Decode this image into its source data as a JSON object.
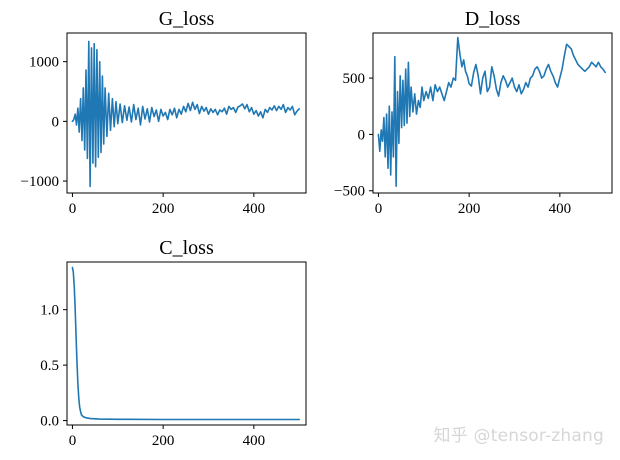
{
  "watermark": "知乎 @tensor-zhang",
  "line_color": "#1f77b4",
  "chart_data": [
    {
      "type": "line",
      "title": "G_loss",
      "xlim": [
        -12,
        515
      ],
      "ylim": [
        -1200,
        1480
      ],
      "xticks": [
        0,
        200,
        400
      ],
      "xtick_labels": [
        "0",
        "200",
        "400"
      ],
      "yticks": [
        -1000,
        0,
        1000
      ],
      "ytick_labels": [
        "−1000",
        "0",
        "1000"
      ],
      "series": [
        {
          "values": [
            [
              0,
              0
            ],
            [
              3,
              30
            ],
            [
              6,
              120
            ],
            [
              9,
              -60
            ],
            [
              12,
              220
            ],
            [
              15,
              -180
            ],
            [
              18,
              380
            ],
            [
              21,
              -320
            ],
            [
              24,
              560
            ],
            [
              27,
              -480
            ],
            [
              30,
              860
            ],
            [
              33,
              -620
            ],
            [
              36,
              1340
            ],
            [
              39,
              -1090
            ],
            [
              42,
              1230
            ],
            [
              45,
              -700
            ],
            [
              48,
              1300
            ],
            [
              51,
              -760
            ],
            [
              54,
              1200
            ],
            [
              57,
              -600
            ],
            [
              60,
              1000
            ],
            [
              63,
              -520
            ],
            [
              66,
              760
            ],
            [
              69,
              -380
            ],
            [
              72,
              560
            ],
            [
              76,
              -250
            ],
            [
              80,
              470
            ],
            [
              84,
              -150
            ],
            [
              88,
              380
            ],
            [
              92,
              -90
            ],
            [
              96,
              330
            ],
            [
              100,
              -40
            ],
            [
              105,
              290
            ],
            [
              110,
              -20
            ],
            [
              115,
              260
            ],
            [
              120,
              20
            ],
            [
              125,
              240
            ],
            [
              130,
              -10
            ],
            [
              135,
              280
            ],
            [
              140,
              30
            ],
            [
              145,
              220
            ],
            [
              150,
              -60
            ],
            [
              155,
              250
            ],
            [
              160,
              40
            ],
            [
              165,
              210
            ],
            [
              170,
              -10
            ],
            [
              175,
              230
            ],
            [
              180,
              80
            ],
            [
              185,
              190
            ],
            [
              190,
              0
            ],
            [
              195,
              200
            ],
            [
              200,
              90
            ],
            [
              205,
              150
            ],
            [
              210,
              30
            ],
            [
              215,
              200
            ],
            [
              220,
              110
            ],
            [
              225,
              220
            ],
            [
              230,
              60
            ],
            [
              235,
              200
            ],
            [
              240,
              120
            ],
            [
              245,
              250
            ],
            [
              250,
              160
            ],
            [
              255,
              300
            ],
            [
              260,
              180
            ],
            [
              265,
              320
            ],
            [
              270,
              200
            ],
            [
              275,
              280
            ],
            [
              280,
              130
            ],
            [
              285,
              250
            ],
            [
              290,
              170
            ],
            [
              295,
              230
            ],
            [
              300,
              120
            ],
            [
              305,
              210
            ],
            [
              310,
              150
            ],
            [
              315,
              200
            ],
            [
              320,
              110
            ],
            [
              325,
              190
            ],
            [
              330,
              160
            ],
            [
              335,
              220
            ],
            [
              340,
              120
            ],
            [
              345,
              250
            ],
            [
              350,
              200
            ],
            [
              355,
              230
            ],
            [
              360,
              150
            ],
            [
              365,
              240
            ],
            [
              370,
              260
            ],
            [
              375,
              290
            ],
            [
              380,
              210
            ],
            [
              385,
              280
            ],
            [
              390,
              160
            ],
            [
              395,
              230
            ],
            [
              400,
              120
            ],
            [
              405,
              180
            ],
            [
              410,
              90
            ],
            [
              415,
              160
            ],
            [
              420,
              60
            ],
            [
              425,
              200
            ],
            [
              430,
              150
            ],
            [
              435,
              230
            ],
            [
              440,
              190
            ],
            [
              445,
              260
            ],
            [
              450,
              180
            ],
            [
              455,
              250
            ],
            [
              460,
              200
            ],
            [
              465,
              280
            ],
            [
              470,
              150
            ],
            [
              475,
              230
            ],
            [
              480,
              190
            ],
            [
              485,
              250
            ],
            [
              490,
              110
            ],
            [
              495,
              170
            ],
            [
              500,
              210
            ]
          ]
        }
      ]
    },
    {
      "type": "line",
      "title": "D_loss",
      "xlim": [
        -12,
        515
      ],
      "ylim": [
        -520,
        900
      ],
      "xticks": [
        0,
        200,
        400
      ],
      "xtick_labels": [
        "0",
        "200",
        "400"
      ],
      "yticks": [
        -500,
        0,
        500
      ],
      "ytick_labels": [
        "−500",
        "0",
        "500"
      ],
      "series": [
        {
          "values": [
            [
              0,
              0
            ],
            [
              3,
              -150
            ],
            [
              6,
              40
            ],
            [
              9,
              -60
            ],
            [
              12,
              150
            ],
            [
              15,
              -200
            ],
            [
              18,
              180
            ],
            [
              21,
              -300
            ],
            [
              24,
              250
            ],
            [
              27,
              -360
            ],
            [
              30,
              200
            ],
            [
              33,
              -200
            ],
            [
              36,
              690
            ],
            [
              39,
              -460
            ],
            [
              42,
              380
            ],
            [
              45,
              -80
            ],
            [
              48,
              520
            ],
            [
              51,
              60
            ],
            [
              54,
              480
            ],
            [
              57,
              80
            ],
            [
              60,
              580
            ],
            [
              63,
              100
            ],
            [
              66,
              640
            ],
            [
              69,
              160
            ],
            [
              72,
              420
            ],
            [
              76,
              200
            ],
            [
              80,
              360
            ],
            [
              84,
              180
            ],
            [
              88,
              300
            ],
            [
              92,
              240
            ],
            [
              96,
              420
            ],
            [
              100,
              300
            ],
            [
              105,
              380
            ],
            [
              110,
              320
            ],
            [
              115,
              420
            ],
            [
              120,
              300
            ],
            [
              125,
              440
            ],
            [
              130,
              380
            ],
            [
              135,
              420
            ],
            [
              140,
              360
            ],
            [
              145,
              300
            ],
            [
              150,
              380
            ],
            [
              155,
              460
            ],
            [
              160,
              420
            ],
            [
              165,
              500
            ],
            [
              170,
              480
            ],
            [
              175,
              860
            ],
            [
              180,
              700
            ],
            [
              184,
              600
            ],
            [
              188,
              660
            ],
            [
              192,
              560
            ],
            [
              196,
              520
            ],
            [
              200,
              450
            ],
            [
              205,
              430
            ],
            [
              210,
              550
            ],
            [
              215,
              620
            ],
            [
              220,
              520
            ],
            [
              225,
              360
            ],
            [
              230,
              500
            ],
            [
              235,
              560
            ],
            [
              240,
              380
            ],
            [
              245,
              420
            ],
            [
              250,
              600
            ],
            [
              255,
              520
            ],
            [
              260,
              400
            ],
            [
              265,
              340
            ],
            [
              270,
              460
            ],
            [
              275,
              520
            ],
            [
              280,
              480
            ],
            [
              285,
              420
            ],
            [
              290,
              460
            ],
            [
              295,
              500
            ],
            [
              300,
              420
            ],
            [
              305,
              380
            ],
            [
              310,
              440
            ],
            [
              315,
              360
            ],
            [
              320,
              400
            ],
            [
              325,
              460
            ],
            [
              330,
              420
            ],
            [
              335,
              500
            ],
            [
              340,
              520
            ],
            [
              345,
              580
            ],
            [
              350,
              600
            ],
            [
              355,
              560
            ],
            [
              360,
              500
            ],
            [
              365,
              520
            ],
            [
              370,
              580
            ],
            [
              375,
              620
            ],
            [
              380,
              560
            ],
            [
              385,
              520
            ],
            [
              390,
              460
            ],
            [
              395,
              420
            ],
            [
              400,
              500
            ],
            [
              405,
              580
            ],
            [
              410,
              700
            ],
            [
              415,
              800
            ],
            [
              420,
              780
            ],
            [
              425,
              760
            ],
            [
              430,
              700
            ],
            [
              435,
              660
            ],
            [
              440,
              620
            ],
            [
              445,
              600
            ],
            [
              450,
              580
            ],
            [
              455,
              560
            ],
            [
              460,
              580
            ],
            [
              465,
              600
            ],
            [
              470,
              640
            ],
            [
              475,
              620
            ],
            [
              480,
              600
            ],
            [
              485,
              640
            ],
            [
              490,
              600
            ],
            [
              495,
              580
            ],
            [
              500,
              550
            ]
          ]
        }
      ]
    },
    {
      "type": "line",
      "title": "C_loss",
      "xlim": [
        -12,
        515
      ],
      "ylim": [
        -0.04,
        1.43
      ],
      "xticks": [
        0,
        200,
        400
      ],
      "xtick_labels": [
        "0",
        "200",
        "400"
      ],
      "yticks": [
        0,
        0.5,
        1
      ],
      "ytick_labels": [
        "0.0",
        "0.5",
        "1.0"
      ],
      "series": [
        {
          "values": [
            [
              0,
              1.38
            ],
            [
              2,
              1.34
            ],
            [
              4,
              1.2
            ],
            [
              6,
              1.0
            ],
            [
              8,
              0.75
            ],
            [
              10,
              0.52
            ],
            [
              12,
              0.33
            ],
            [
              14,
              0.2
            ],
            [
              16,
              0.12
            ],
            [
              18,
              0.08
            ],
            [
              20,
              0.05
            ],
            [
              24,
              0.035
            ],
            [
              30,
              0.025
            ],
            [
              40,
              0.018
            ],
            [
              60,
              0.013
            ],
            [
              100,
              0.011
            ],
            [
              200,
              0.01
            ],
            [
              300,
              0.01
            ],
            [
              400,
              0.01
            ],
            [
              500,
              0.01
            ]
          ]
        }
      ]
    }
  ]
}
